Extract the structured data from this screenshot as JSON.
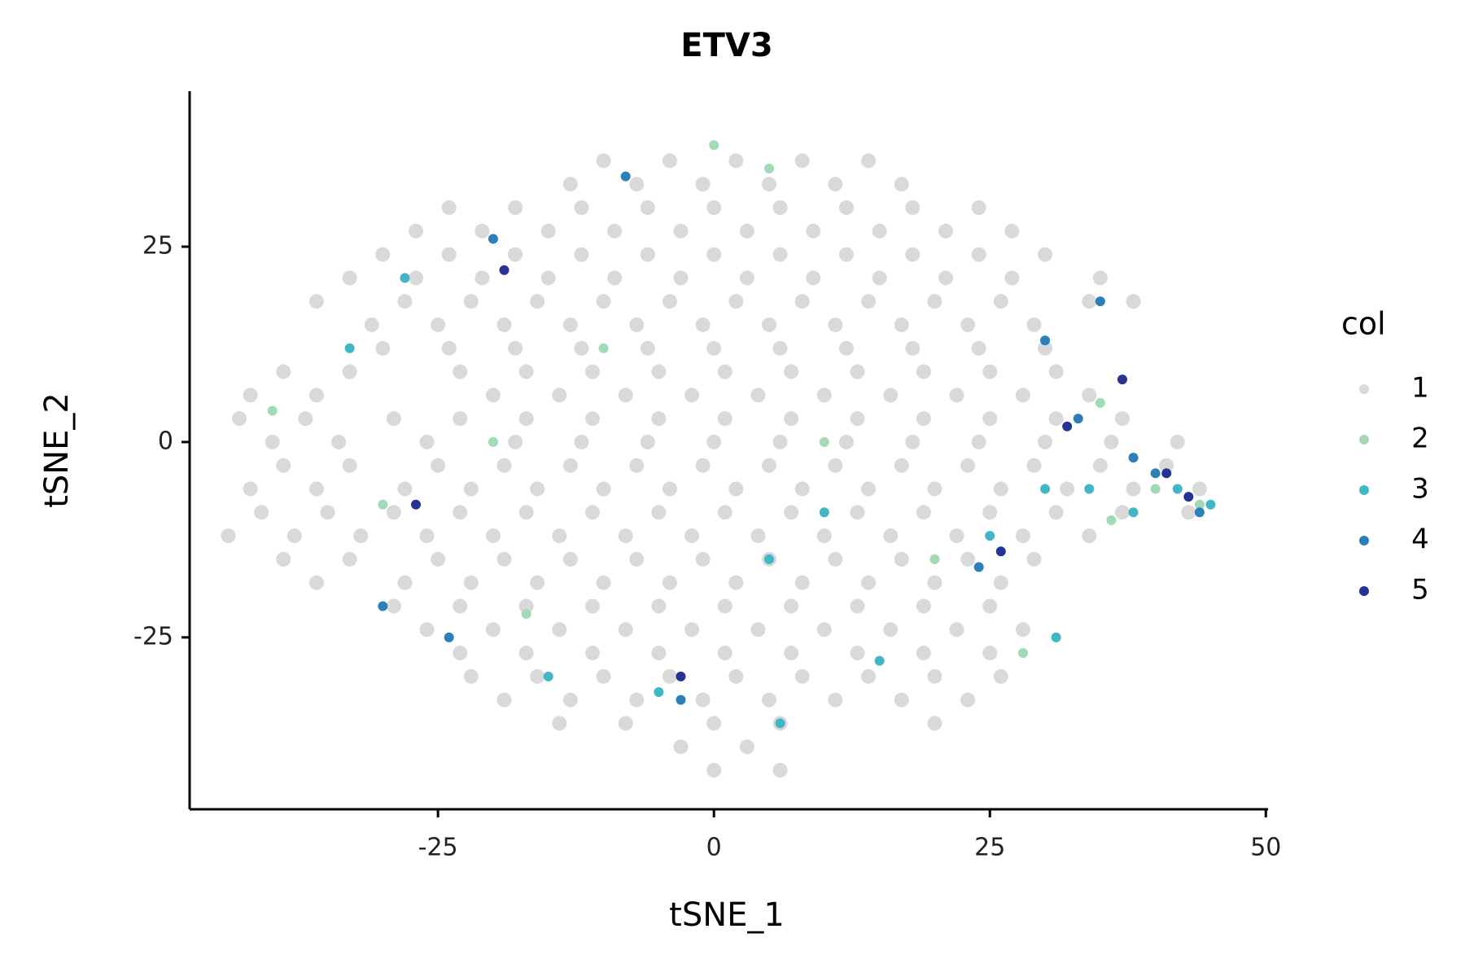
{
  "chart_data": {
    "type": "scatter",
    "title": "ETV3",
    "x_label": "tSNE_1",
    "y_label": "tSNE_2",
    "legend_title": "col",
    "legend_position": "right",
    "grid": false,
    "xlim": [
      -47.5,
      50.2
    ],
    "ylim": [
      -47,
      44.9
    ],
    "xticks": [
      -25,
      0,
      25,
      50
    ],
    "yticks": [
      -25,
      0,
      25
    ],
    "series": [
      {
        "name": "1",
        "color": "#d9d9d9",
        "x": [
          -10,
          -4,
          2,
          8,
          14,
          -13,
          -7,
          -1,
          5,
          11,
          17,
          -24,
          -18,
          -12,
          -6,
          0,
          6,
          12,
          18,
          24,
          -27,
          -21,
          -15,
          -9,
          -3,
          3,
          9,
          15,
          21,
          27,
          -30,
          -24,
          -18,
          -12,
          -6,
          0,
          6,
          12,
          18,
          24,
          30,
          -33,
          -27,
          -21,
          -15,
          -9,
          -3,
          3,
          9,
          15,
          21,
          27,
          35,
          -36,
          -28,
          -22,
          -16,
          -10,
          -4,
          2,
          8,
          14,
          20,
          26,
          34,
          38,
          -31,
          -25,
          -19,
          -13,
          -7,
          -1,
          5,
          11,
          17,
          23,
          29,
          -30,
          -24,
          -18,
          -12,
          -6,
          0,
          6,
          12,
          18,
          24,
          30,
          -39,
          -33,
          -23,
          -17,
          -11,
          -5,
          1,
          7,
          13,
          19,
          25,
          31,
          -42,
          -36,
          -20,
          -14,
          -8,
          -2,
          4,
          10,
          16,
          22,
          28,
          34,
          -43,
          -37,
          -29,
          -23,
          -17,
          -11,
          -5,
          1,
          7,
          13,
          19,
          25,
          31,
          37,
          -40,
          -34,
          -26,
          -18,
          -12,
          -6,
          0,
          6,
          12,
          18,
          24,
          30,
          36,
          42,
          -39,
          -33,
          -25,
          -19,
          -13,
          -7,
          -1,
          5,
          11,
          17,
          23,
          29,
          35,
          41,
          -42,
          -36,
          -28,
          -22,
          -16,
          -10,
          -4,
          2,
          8,
          14,
          20,
          26,
          32,
          38,
          44,
          -41,
          -35,
          -29,
          -23,
          -17,
          -11,
          -5,
          1,
          7,
          13,
          19,
          25,
          31,
          37,
          43,
          -44,
          -38,
          -32,
          -26,
          -20,
          -14,
          -8,
          -2,
          4,
          10,
          16,
          22,
          28,
          34,
          -39,
          -33,
          -25,
          -19,
          -13,
          -7,
          -1,
          5,
          11,
          17,
          23,
          29,
          -36,
          -28,
          -22,
          -16,
          -10,
          -4,
          2,
          8,
          14,
          20,
          26,
          -29,
          -23,
          -17,
          -11,
          -5,
          1,
          7,
          13,
          19,
          25,
          -26,
          -20,
          -14,
          -8,
          -2,
          4,
          10,
          16,
          22,
          28,
          -23,
          -17,
          -11,
          -5,
          1,
          7,
          13,
          19,
          25,
          -22,
          -16,
          -10,
          -4,
          2,
          8,
          14,
          20,
          26,
          -19,
          -13,
          -7,
          -1,
          5,
          11,
          17,
          23,
          -14,
          -8,
          0,
          6,
          20,
          -3,
          3,
          0,
          6
        ],
        "y": [
          36,
          36,
          36,
          36,
          36,
          33,
          33,
          33,
          33,
          33,
          33,
          30,
          30,
          30,
          30,
          30,
          30,
          30,
          30,
          30,
          27,
          27,
          27,
          27,
          27,
          27,
          27,
          27,
          27,
          27,
          24,
          24,
          24,
          24,
          24,
          24,
          24,
          24,
          24,
          24,
          24,
          21,
          21,
          21,
          21,
          21,
          21,
          21,
          21,
          21,
          21,
          21,
          21,
          18,
          18,
          18,
          18,
          18,
          18,
          18,
          18,
          18,
          18,
          18,
          18,
          18,
          15,
          15,
          15,
          15,
          15,
          15,
          15,
          15,
          15,
          15,
          15,
          12,
          12,
          12,
          12,
          12,
          12,
          12,
          12,
          12,
          12,
          12,
          9,
          9,
          9,
          9,
          9,
          9,
          9,
          9,
          9,
          9,
          9,
          9,
          6,
          6,
          6,
          6,
          6,
          6,
          6,
          6,
          6,
          6,
          6,
          6,
          3,
          3,
          3,
          3,
          3,
          3,
          3,
          3,
          3,
          3,
          3,
          3,
          3,
          3,
          0,
          0,
          0,
          0,
          0,
          0,
          0,
          0,
          0,
          0,
          0,
          0,
          0,
          0,
          -3,
          -3,
          -3,
          -3,
          -3,
          -3,
          -3,
          -3,
          -3,
          -3,
          -3,
          -3,
          -3,
          -3,
          -6,
          -6,
          -6,
          -6,
          -6,
          -6,
          -6,
          -6,
          -6,
          -6,
          -6,
          -6,
          -6,
          -6,
          -6,
          -9,
          -9,
          -9,
          -9,
          -9,
          -9,
          -9,
          -9,
          -9,
          -9,
          -9,
          -9,
          -9,
          -9,
          -9,
          -12,
          -12,
          -12,
          -12,
          -12,
          -12,
          -12,
          -12,
          -12,
          -12,
          -12,
          -12,
          -12,
          -12,
          -15,
          -15,
          -15,
          -15,
          -15,
          -15,
          -15,
          -15,
          -15,
          -15,
          -15,
          -15,
          -18,
          -18,
          -18,
          -18,
          -18,
          -18,
          -18,
          -18,
          -18,
          -18,
          -18,
          -21,
          -21,
          -21,
          -21,
          -21,
          -21,
          -21,
          -21,
          -21,
          -21,
          -24,
          -24,
          -24,
          -24,
          -24,
          -24,
          -24,
          -24,
          -24,
          -24,
          -27,
          -27,
          -27,
          -27,
          -27,
          -27,
          -27,
          -27,
          -27,
          -30,
          -30,
          -30,
          -30,
          -30,
          -30,
          -30,
          -30,
          -30,
          -33,
          -33,
          -33,
          -33,
          -33,
          -33,
          -33,
          -33,
          -36,
          -36,
          -36,
          -36,
          -36,
          -39,
          -39,
          -42,
          -42
        ]
      },
      {
        "name": "2",
        "color": "#a1dab4",
        "x": [
          -40,
          -30,
          -20,
          -10,
          0,
          5,
          10,
          20,
          28,
          35,
          40,
          44,
          -17,
          36
        ],
        "y": [
          4,
          -8,
          0,
          12,
          38,
          35,
          0,
          -15,
          -27,
          5,
          -6,
          -8,
          -22,
          -10
        ]
      },
      {
        "name": "3",
        "color": "#41b6c4",
        "x": [
          -33,
          -28,
          -15,
          5,
          10,
          15,
          30,
          34,
          38,
          42,
          45,
          -5,
          25,
          31,
          6
        ],
        "y": [
          12,
          21,
          -30,
          -15,
          -9,
          -28,
          -6,
          -6,
          -9,
          -6,
          -8,
          -32,
          -12,
          -25,
          -36
        ]
      },
      {
        "name": "4",
        "color": "#2c7fb8",
        "x": [
          -20,
          -8,
          -24,
          -3,
          24,
          33,
          38,
          40,
          44,
          -30,
          35,
          30
        ],
        "y": [
          26,
          34,
          -25,
          -33,
          -16,
          3,
          -2,
          -4,
          -9,
          -21,
          18,
          13
        ]
      },
      {
        "name": "5",
        "color": "#253494",
        "x": [
          -19,
          26,
          32,
          43,
          -3,
          41,
          37,
          -27
        ],
        "y": [
          22,
          -14,
          2,
          -7,
          -30,
          -4,
          8,
          -8
        ]
      }
    ]
  }
}
